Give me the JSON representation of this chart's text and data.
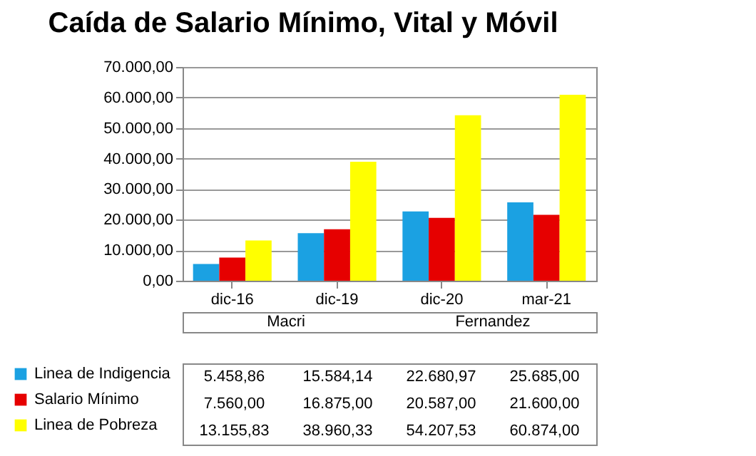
{
  "chart_data": {
    "type": "bar",
    "title": "Caída de Salario Mínimo, Vital y Móvil",
    "categories": [
      "dic-16",
      "dic-19",
      "dic-20",
      "mar-21"
    ],
    "series": [
      {
        "name": "Linea de Indigencia",
        "color": "#1ba1e2",
        "values": [
          5458.86,
          15584.14,
          22680.97,
          25685.0
        ],
        "value_labels": [
          "5.458,86",
          "15.584,14",
          "22.680,97",
          "25.685,00"
        ]
      },
      {
        "name": "Salario Mínimo",
        "color": "#e60000",
        "values": [
          7560.0,
          16875.0,
          20587.0,
          21600.0
        ],
        "value_labels": [
          "7.560,00",
          "16.875,00",
          "20.587,00",
          "21.600,00"
        ]
      },
      {
        "name": "Linea de Pobreza",
        "color": "#ffff00",
        "values": [
          13155.83,
          38960.33,
          54207.53,
          60874.0
        ],
        "value_labels": [
          "13.155,83",
          "38.960,33",
          "54.207,53",
          "60.874,00"
        ]
      }
    ],
    "ylim": [
      0,
      70000
    ],
    "yticks": [
      {
        "value": 0,
        "label": "0,00"
      },
      {
        "value": 10000,
        "label": "10.000,00"
      },
      {
        "value": 20000,
        "label": "20.000,00"
      },
      {
        "value": 30000,
        "label": "30.000,00"
      },
      {
        "value": 40000,
        "label": "40.000,00"
      },
      {
        "value": 50000,
        "label": "50.000,00"
      },
      {
        "value": 60000,
        "label": "60.000,00"
      },
      {
        "value": 70000,
        "label": "70.000,00"
      }
    ],
    "grid": "y",
    "legend": "bottom",
    "annotations": [
      "Macri",
      "Fernandez"
    ]
  }
}
